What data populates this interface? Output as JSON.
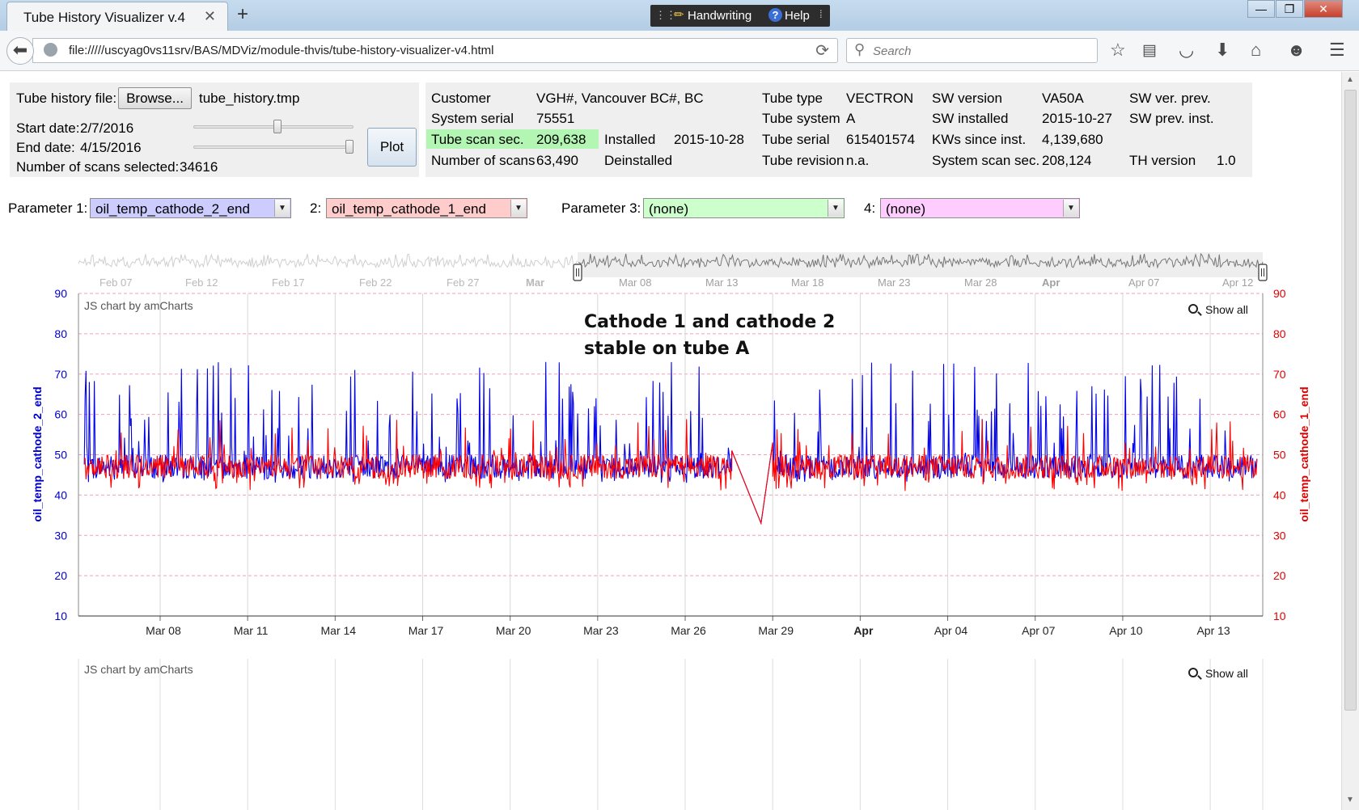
{
  "browser": {
    "tab_title": "Tube History Visualizer v.4",
    "tab_close": "✕",
    "new_tab": "+",
    "address": "file://///uscyag0vs11srv/BAS/MDViz/module-thvis/tube-history-visualizer-v4.html",
    "search_placeholder": "Search",
    "handwriting_label": "Handwriting",
    "help_label": "Help",
    "toolbar_icons": [
      "bookmark-star-icon",
      "reading-list-icon",
      "pocket-icon",
      "download-icon",
      "home-icon",
      "chat-icon",
      "menu-icon"
    ]
  },
  "controls": {
    "file_label": "Tube history file:",
    "browse_label": "Browse...",
    "file_name": "tube_history.tmp",
    "start_label": "Start date:",
    "start_value": "2/7/2016",
    "end_label": "End date:",
    "end_value": "4/15/2016",
    "scans_label": "Number of scans selected:",
    "scans_value": "34616",
    "plot_label": "Plot",
    "start_slider_fraction": 0.52,
    "end_slider_fraction": 0.99
  },
  "info": {
    "customer_label": "Customer",
    "customer": "VGH#, Vancouver BC#, BC",
    "system_serial_label": "System serial",
    "system_serial": "75551",
    "tube_scan_label": "Tube scan sec.",
    "tube_scan": "209,638",
    "installed_label": "Installed",
    "installed": "2015-10-28",
    "num_scans_label": "Number of scans",
    "num_scans": "63,490",
    "deinstalled_label": "Deinstalled",
    "tube_type_label": "Tube type",
    "tube_type": "VECTRON",
    "tube_system_label": "Tube system",
    "tube_system": "A",
    "tube_serial_label": "Tube serial",
    "tube_serial": "615401574",
    "tube_revision_label": "Tube revision",
    "tube_revision": "n.a.",
    "sw_version_label": "SW version",
    "sw_version": "VA50A",
    "sw_installed_label": "SW installed",
    "sw_installed": "2015-10-27",
    "kws_label": "KWs since inst.",
    "kws": "4,139,680",
    "sys_scan_label": "System scan sec.",
    "sys_scan": "208,124",
    "sw_prev_label": "SW ver. prev.",
    "sw_prev_inst_label": "SW prev. inst.",
    "th_version_label": "TH version",
    "th_version": "1.0",
    "highlight_color": "#b3f5b3"
  },
  "parameters": {
    "p1_label": "Parameter 1:",
    "p1_value": "oil_temp_cathode_2_end",
    "p1_color": "#ccccff",
    "p2_label": "2:",
    "p2_value": "oil_temp_cathode_1_end",
    "p2_color": "#ffcccc",
    "p3_label": "Parameter 3:",
    "p3_value": "(none)",
    "p3_color": "#ccffcc",
    "p4_label": "4:",
    "p4_value": "(none)",
    "p4_color": "#ffccff"
  },
  "annotation": {
    "line1": "Cathode 1 and cathode 2",
    "line2": "stable on tube A"
  },
  "chart_credit": "JS chart by amCharts",
  "show_all_label": "Show all",
  "navigator": {
    "labels": [
      "Feb 07",
      "Feb 12",
      "Feb 17",
      "Feb 22",
      "Feb 27",
      "Mar",
      "Mar 08",
      "Mar 13",
      "Mar 18",
      "Mar 23",
      "Mar 28",
      "Apr",
      "Apr 07",
      "Apr 12"
    ],
    "bold_labels": [
      "Mar",
      "Apr"
    ],
    "selection_start": "Mar 06",
    "selection_end": "Apr 15"
  },
  "chart_data": {
    "type": "line",
    "x_labels": [
      "Mar 08",
      "Mar 11",
      "Mar 14",
      "Mar 17",
      "Mar 20",
      "Mar 23",
      "Mar 26",
      "Mar 29",
      "Apr",
      "Apr 04",
      "Apr 07",
      "Apr 10",
      "Apr 13"
    ],
    "bold_x_labels": [
      "Apr"
    ],
    "x_range": [
      "Mar 06",
      "Apr 15"
    ],
    "y_left_label": "oil_temp_cathode_2_end",
    "y_right_label": "oil_temp_cathode_1_end",
    "ylim": [
      10,
      90
    ],
    "y_ticks": [
      10,
      20,
      30,
      40,
      50,
      60,
      70,
      80,
      90
    ],
    "series": [
      {
        "name": "oil_temp_cathode_2_end",
        "color": "#0000ee",
        "axis": "left",
        "baseline": 47,
        "noise_range": [
          43,
          73
        ],
        "gap": {
          "from": "Mar 26",
          "to": "Mar 28",
          "low_value": 33
        }
      },
      {
        "name": "oil_temp_cathode_1_end",
        "color": "#ff0000",
        "axis": "right",
        "baseline": 47,
        "noise_range": [
          41,
          59
        ],
        "gap": {
          "from": "Mar 26",
          "to": "Mar 28",
          "low_value": 33
        }
      }
    ],
    "grid": true,
    "left_axis_color": "#0000cc",
    "right_axis_color": "#dd0000"
  }
}
